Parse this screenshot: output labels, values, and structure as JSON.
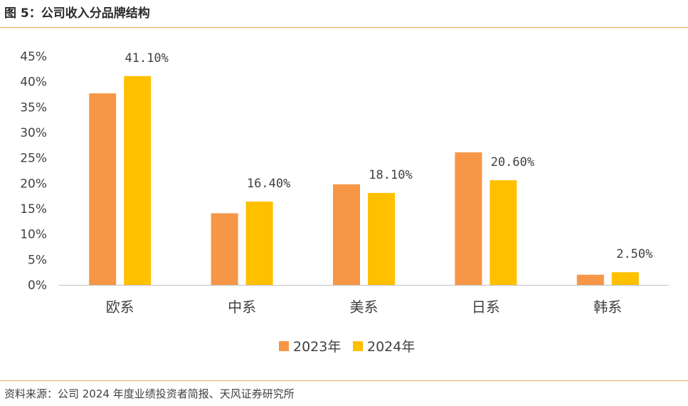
{
  "figure": {
    "title": "图 5：公司收入分品牌结构",
    "source": "资料来源：公司 2024 年度业绩投资者简报、天风证券研究所"
  },
  "colors": {
    "series_2023": "#f79646",
    "series_2024": "#ffc000",
    "axis": "#bfbfbf",
    "rule": "#e6a85c"
  },
  "chart_data": {
    "type": "bar",
    "title": "公司收入分品牌结构",
    "xlabel": "",
    "ylabel": "",
    "categories": [
      "欧系",
      "中系",
      "美系",
      "日系",
      "韩系"
    ],
    "series": [
      {
        "name": "2023年",
        "values": [
          37.7,
          14.1,
          19.8,
          26.1,
          2.0
        ]
      },
      {
        "name": "2024年",
        "values": [
          41.1,
          16.4,
          18.1,
          20.6,
          2.5
        ]
      }
    ],
    "data_labels": [
      "41.10%",
      "16.40%",
      "18.10%",
      "20.60%",
      "2.50%"
    ],
    "ylim": [
      0,
      45
    ],
    "yticks": [
      "0%",
      "5%",
      "10%",
      "15%",
      "20%",
      "25%",
      "30%",
      "35%",
      "40%",
      "45%"
    ],
    "grid": false,
    "legend_position": "bottom-center"
  }
}
